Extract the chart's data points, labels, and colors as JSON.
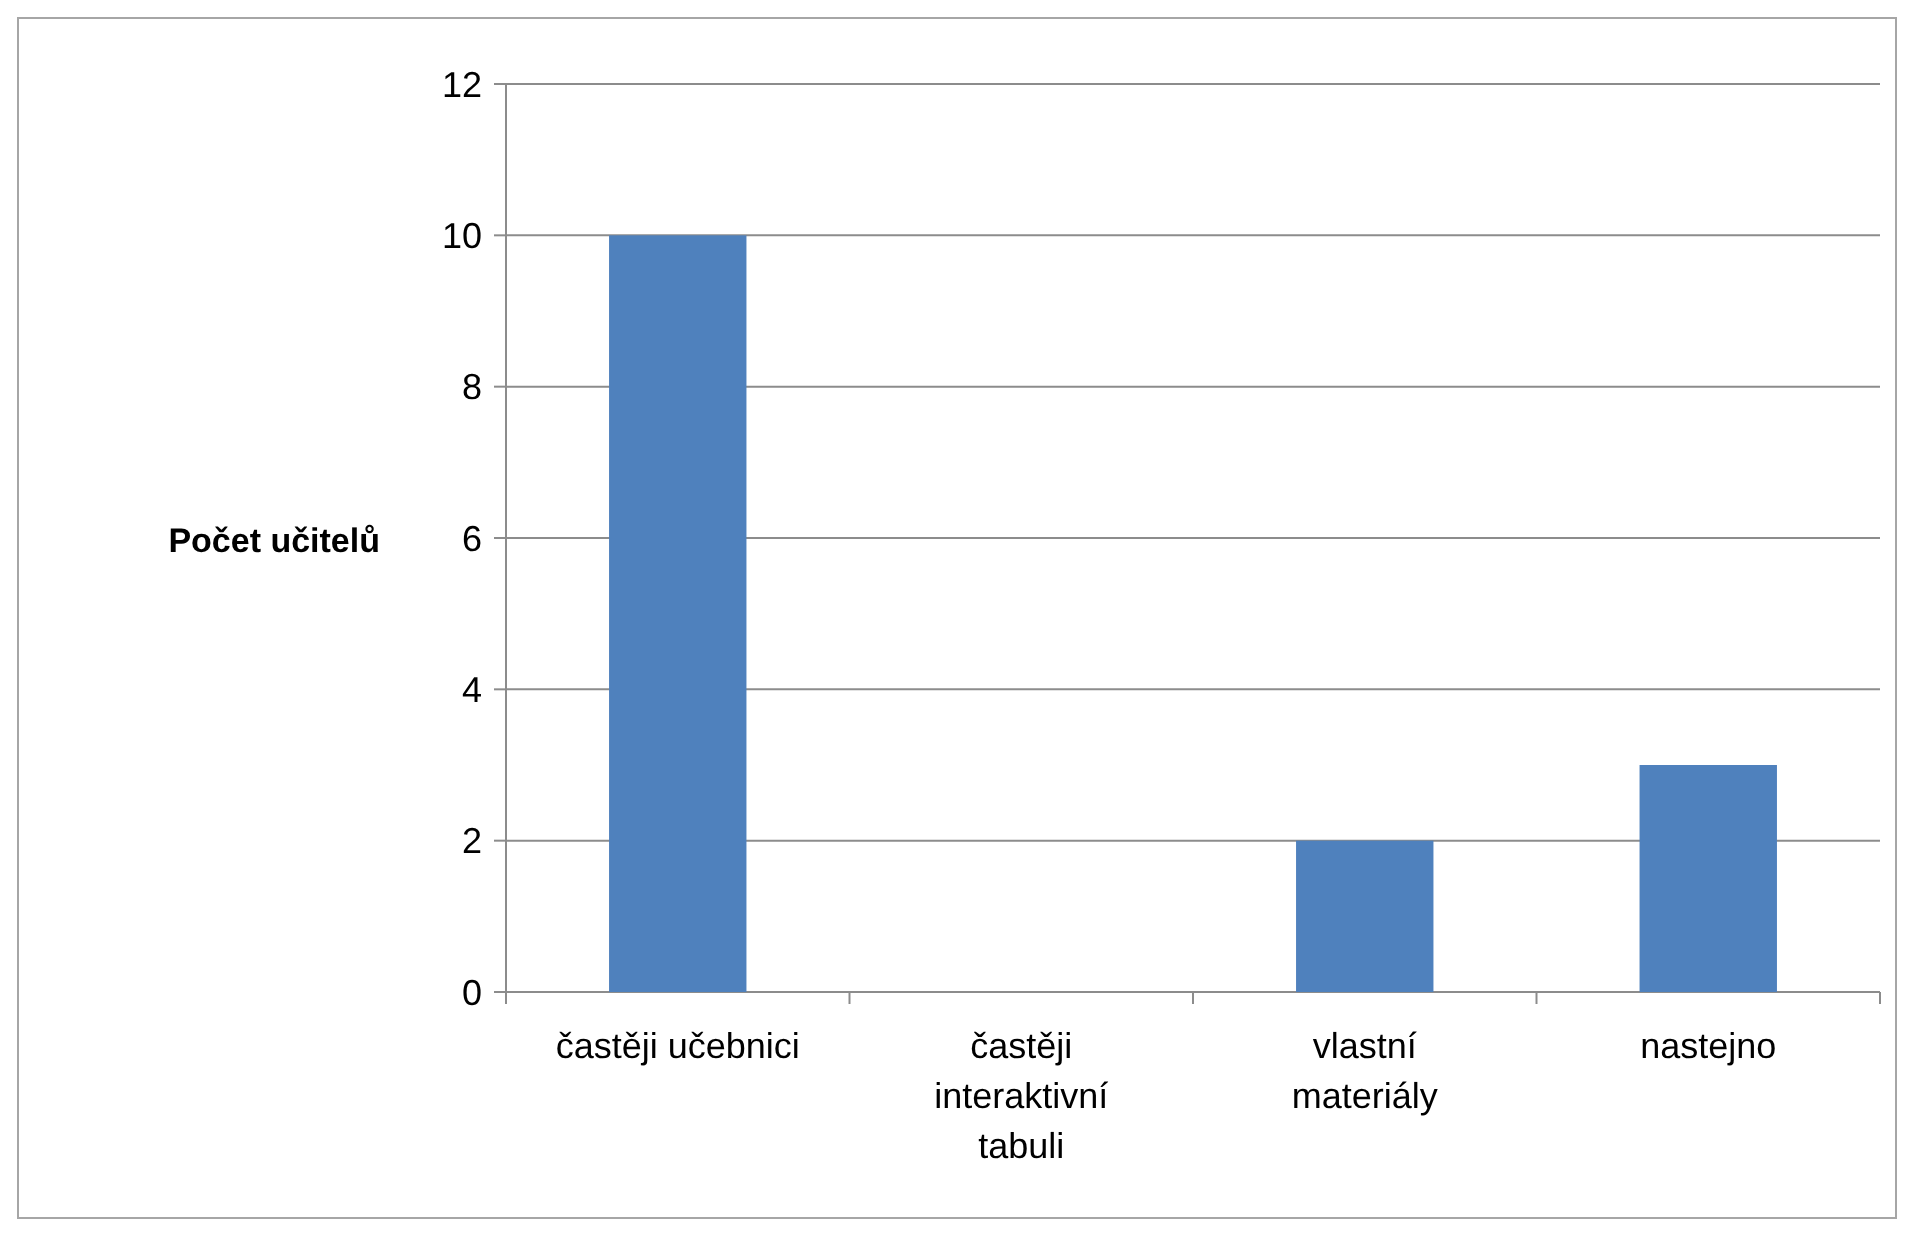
{
  "chart_data": {
    "type": "bar",
    "ylabel": "Počet učitelů",
    "categories": [
      "častěji učebnici",
      "častěji interaktivní tabuli",
      "vlastní materiály",
      "nastejno"
    ],
    "values": [
      10,
      0,
      2,
      3
    ],
    "color": "#4f81bd",
    "ylim": [
      0,
      12
    ],
    "yticks": [
      0,
      2,
      4,
      6,
      8,
      10,
      12
    ],
    "grid": "y"
  }
}
